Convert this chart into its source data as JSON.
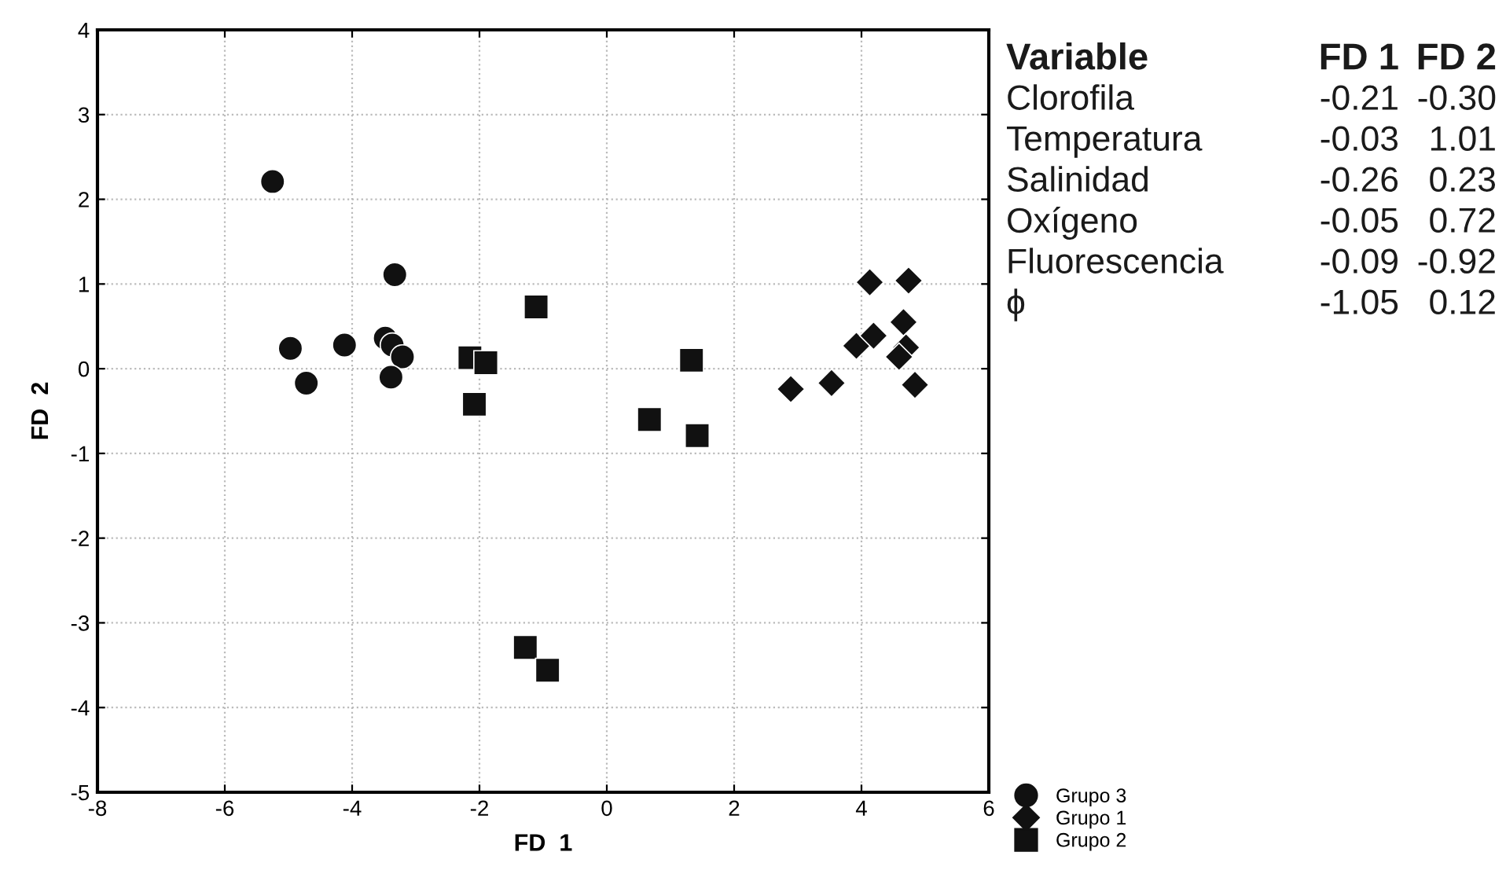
{
  "chart_data": {
    "type": "scatter",
    "xlabel": "FD  1",
    "ylabel": "FD  2",
    "xlim": [
      -8,
      6
    ],
    "ylim": [
      -5,
      4
    ],
    "xticks": [
      -8,
      -6,
      -4,
      -2,
      0,
      2,
      4,
      6
    ],
    "yticks": [
      -5,
      -4,
      -3,
      -2,
      -1,
      0,
      1,
      2,
      3,
      4
    ],
    "grid": true,
    "legend": "bottom right",
    "series": [
      {
        "name": "Grupo 3",
        "color": "#111111",
        "marker": "circle",
        "x": [
          -5.25,
          -3.33,
          -4.97,
          -4.72,
          -4.12,
          -3.48,
          -3.37,
          -3.21,
          -3.39
        ],
        "values": [
          2.21,
          1.11,
          0.24,
          -0.17,
          0.28,
          0.36,
          0.28,
          0.14,
          -0.1
        ]
      },
      {
        "name": "Grupo 1",
        "color": "#111111",
        "marker": "diamond",
        "x": [
          2.89,
          3.53,
          3.92,
          4.19,
          4.13,
          4.74,
          4.66,
          4.7,
          4.59,
          4.84
        ],
        "values": [
          -0.24,
          -0.17,
          0.27,
          0.39,
          1.02,
          1.04,
          0.55,
          0.25,
          0.14,
          -0.19
        ]
      },
      {
        "name": "Grupo 2",
        "color": "#111111",
        "marker": "square",
        "x": [
          -1.11,
          -2.15,
          -1.9,
          -2.08,
          1.33,
          0.67,
          1.42,
          -1.28,
          -0.93
        ],
        "values": [
          0.73,
          0.13,
          0.07,
          -0.42,
          0.1,
          -0.6,
          -0.79,
          -3.29,
          -3.56
        ]
      }
    ],
    "annotations": [
      "Variable",
      "FD 1",
      "FD 2",
      "Clorofila",
      "-0.21",
      "-0.30",
      "Temperatura",
      "-0.03",
      "1.01",
      "Salinidad",
      "-0.26",
      "0.23",
      "Oxígeno",
      "-0.05",
      "0.72",
      "Fluorescencia",
      "-0.09",
      "-0.92",
      "ϕ",
      "-1.05",
      "0.12"
    ]
  }
}
